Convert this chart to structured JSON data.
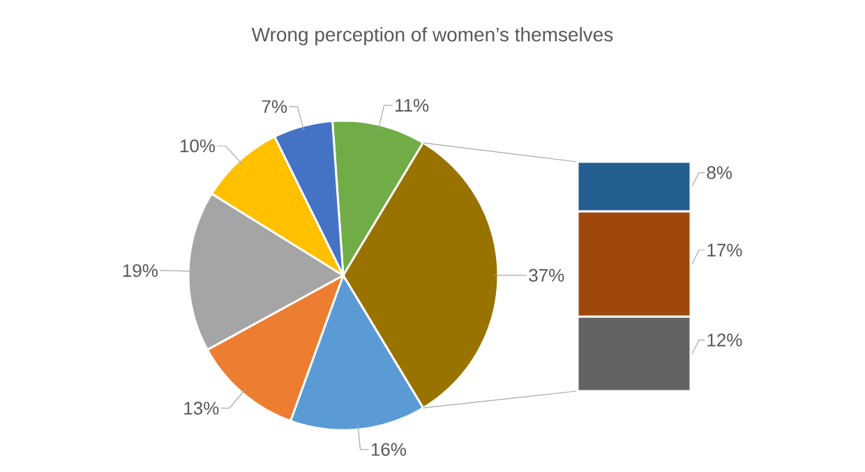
{
  "chart_data": [
    {
      "type": "pie",
      "title": "Wrong perception of women’s themselves",
      "categories": [
        null,
        null,
        null,
        null,
        null,
        null,
        null
      ],
      "values": [
        11,
        37,
        16,
        13,
        19,
        10,
        7
      ],
      "colors": [
        "#70ad47",
        "#997300",
        "#5b9bd5",
        "#ed7d31",
        "#a5a5a5",
        "#ffc000",
        "#4472c4"
      ],
      "value_labels": [
        "11%",
        "37%",
        "16%",
        "13%",
        "19%",
        "10%",
        "7%"
      ]
    },
    {
      "type": "bar",
      "stacked": true,
      "data_labels": true,
      "categories": [
        null
      ],
      "series": [
        {
          "color": "#636363",
          "values": [
            12
          ],
          "value_labels": [
            "12%"
          ]
        },
        {
          "color": "#9e480e",
          "values": [
            17
          ],
          "value_labels": [
            "17%"
          ]
        },
        {
          "color": "#255e91",
          "values": [
            8
          ],
          "value_labels": [
            "8%"
          ]
        }
      ]
    }
  ]
}
